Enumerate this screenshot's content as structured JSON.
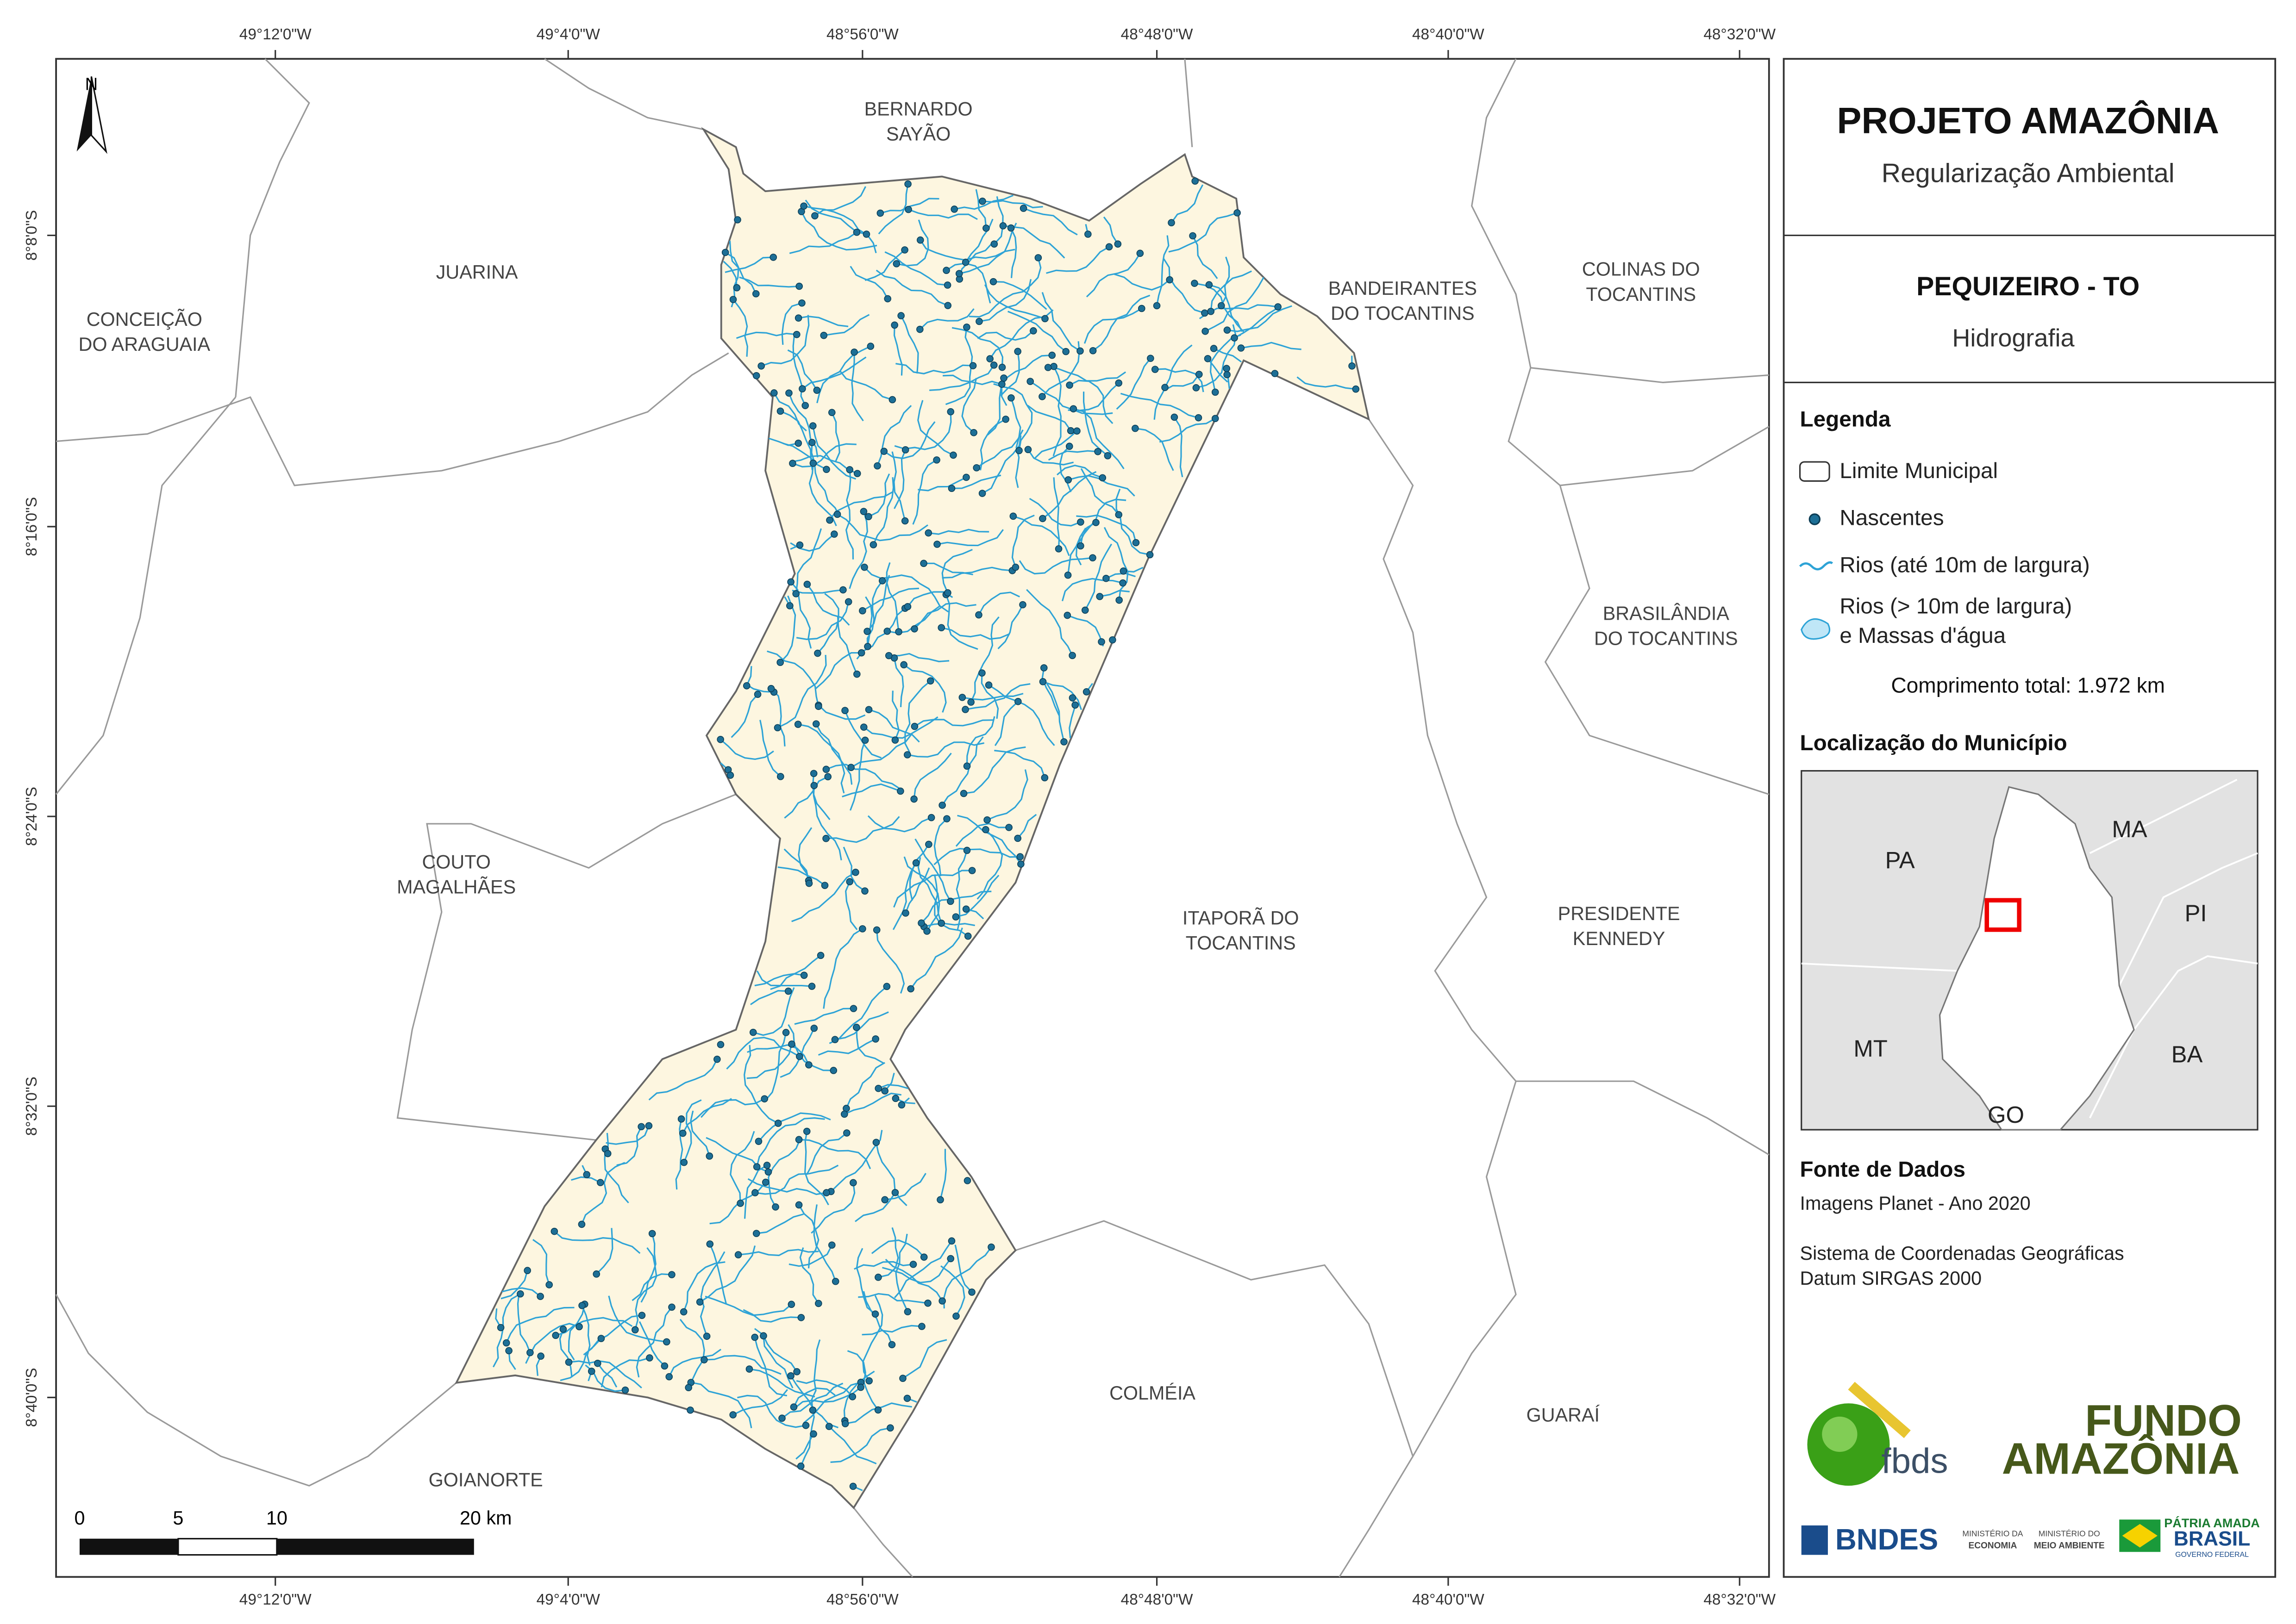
{
  "header": {
    "title": "PROJETO AMAZÔNIA",
    "subtitle": "Regularização Ambiental"
  },
  "municipality": {
    "name": "PEQUIZEIRO - TO",
    "theme": "Hidrografia"
  },
  "legend": {
    "title": "Legenda",
    "items": [
      [
        "Limite Municipal"
      ],
      [
        "Nascentes"
      ],
      [
        "Rios (até 10m de largura)"
      ],
      [
        "Rios (> 10m de largura)",
        "e Massas d'água"
      ]
    ],
    "total": "Comprimento total: 1.972 km"
  },
  "location": {
    "title": "Localização do Município",
    "labels": [
      "PA",
      "MA",
      "PI",
      "MT",
      "BA",
      "GO"
    ]
  },
  "sources": {
    "title": "Fonte de Dados",
    "lines": [
      "Imagens Planet - Ano 2020",
      "Sistema de Coordenadas Geográficas",
      "Datum SIRGAS 2000"
    ]
  },
  "map": {
    "north": "N",
    "scale": [
      "0",
      "5",
      "10",
      "20 km"
    ],
    "lon_labels": [
      "49°12'0\"W",
      "49°4'0\"W",
      "48°56'0\"W",
      "48°48'0\"W",
      "48°40'0\"W",
      "48°32'0\"W"
    ],
    "lat_labels": [
      "8°8'0\"S",
      "8°16'0\"S",
      "8°24'0\"S",
      "8°32'0\"S",
      "8°40'0\"S"
    ],
    "labels": [
      [
        "BERNARDO",
        "SAYÃO"
      ],
      [
        "JUARINA"
      ],
      [
        "CONCEIÇÃO",
        "DO ARAGUAIA"
      ],
      [
        "BANDEIRANTES",
        "DO TOCANTINS"
      ],
      [
        "COLINAS DO",
        "TOCANTINS"
      ],
      [
        "BRASILÂNDIA",
        "DO TOCANTINS"
      ],
      [
        "COUTO",
        "MAGALHÃES"
      ],
      [
        "ITAPORÃ DO",
        "TOCANTINS"
      ],
      [
        "PRESIDENTE",
        "KENNEDY"
      ],
      [
        "COLMÉIA"
      ],
      [
        "GUARAÍ"
      ],
      [
        "GOIANORTE"
      ]
    ]
  },
  "logos": {
    "fbds": "fbds",
    "fundo": [
      "FUNDO",
      "AMAZÔNIA"
    ],
    "bndes": "BNDES",
    "min1": [
      "MINISTÉRIO DA",
      "ECONOMIA"
    ],
    "min2": [
      "MINISTÉRIO DO",
      "MEIO AMBIENTE"
    ],
    "patria": [
      "PÁTRIA AMADA",
      "BRASIL",
      "GOVERNO FEDERAL"
    ]
  }
}
